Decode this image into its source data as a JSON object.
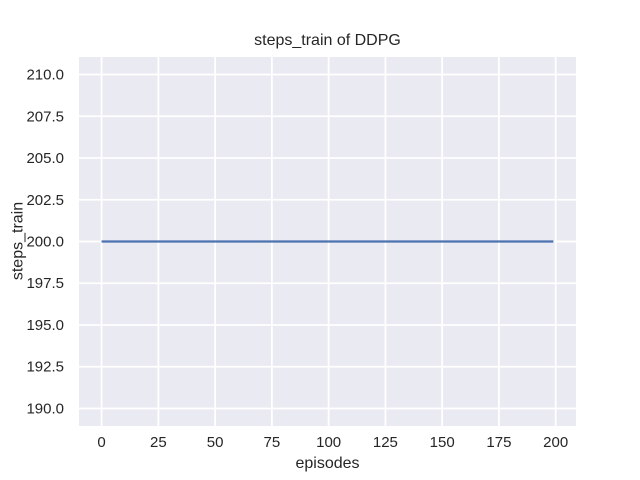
{
  "colors": {
    "figure_bg": "#FFFFFF",
    "plot_bg": "#EAEAF2",
    "grid": "#FFFFFF",
    "line": "#4C72B0",
    "text": "#262626"
  },
  "chart_data": {
    "type": "line",
    "title": "steps_train of DDPG",
    "xlabel": "episodes",
    "ylabel": "steps_train",
    "xlim": [
      -9.95,
      208.95
    ],
    "ylim": [
      188.95,
      211.05
    ],
    "grid": true,
    "legend": null,
    "xticks": {
      "values": [
        0,
        25,
        50,
        75,
        100,
        125,
        150,
        175,
        200
      ],
      "labels": [
        "0",
        "25",
        "50",
        "75",
        "100",
        "125",
        "150",
        "175",
        "200"
      ]
    },
    "yticks": {
      "values": [
        190,
        192.5,
        195,
        197.5,
        200,
        202.5,
        205,
        207.5,
        210
      ],
      "labels": [
        "190.0",
        "192.5",
        "195.0",
        "197.5",
        "200.0",
        "202.5",
        "205.0",
        "207.5",
        "210.0"
      ]
    },
    "series": [
      {
        "name": "steps_train",
        "color": "#4C72B0",
        "x": [
          0,
          199
        ],
        "y": [
          200,
          200
        ]
      }
    ]
  }
}
